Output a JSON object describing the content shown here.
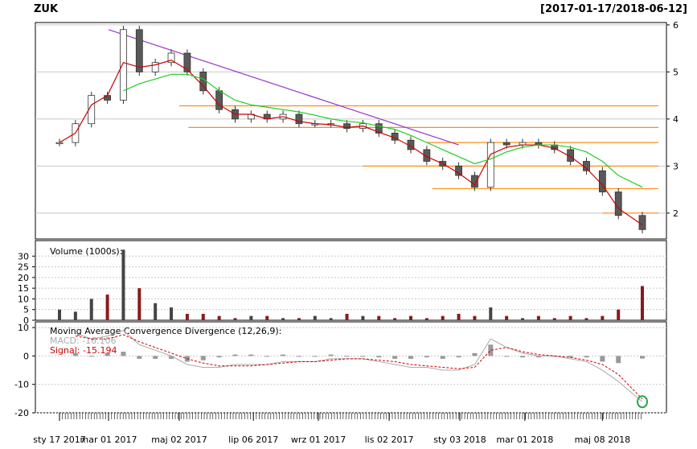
{
  "header": {
    "ticker": "ZUK",
    "date_range": "[2017-01-17/2018-06-12]"
  },
  "colors": {
    "up_candle": "#ffffff",
    "down_candle": "#595959",
    "candle_border": "#333333",
    "ma_short": "#cc0000",
    "ma_long": "#22cc22",
    "trendline": "#9933cc",
    "level_lines": "#ff8c1a",
    "grid": "#c8c8c8",
    "volume_up": "#444444",
    "volume_down": "#8b1a1a",
    "macd_line": "#aaaaaa",
    "signal_line": "#cc0000",
    "macd_hist": "#999999",
    "highlight_circle": "#22aa44"
  },
  "chart_data": [
    {
      "type": "candlestick",
      "panel": "price",
      "title": "",
      "ylim": [
        1.45,
        6.05
      ],
      "y_ticks": [
        2,
        3,
        4,
        5,
        6
      ],
      "y_axis_side": "right",
      "grid": true,
      "x_dates": [
        "2017-01-17",
        "2017-01-31",
        "2017-02-14",
        "2017-02-28",
        "2017-03-14",
        "2017-03-28",
        "2017-04-11",
        "2017-04-25",
        "2017-05-09",
        "2017-05-23",
        "2017-06-06",
        "2017-06-20",
        "2017-07-04",
        "2017-07-18",
        "2017-08-01",
        "2017-08-15",
        "2017-08-29",
        "2017-09-12",
        "2017-09-26",
        "2017-10-10",
        "2017-10-24",
        "2017-11-07",
        "2017-11-21",
        "2017-12-05",
        "2017-12-19",
        "2018-01-02",
        "2018-01-16",
        "2018-01-30",
        "2018-02-13",
        "2018-02-27",
        "2018-03-13",
        "2018-03-27",
        "2018-04-10",
        "2018-04-24",
        "2018-05-08",
        "2018-05-22",
        "2018-06-12"
      ],
      "close": [
        3.5,
        3.9,
        4.5,
        4.4,
        5.9,
        5.0,
        5.2,
        5.4,
        5.0,
        4.6,
        4.2,
        4.0,
        4.1,
        4.0,
        4.1,
        3.9,
        3.9,
        3.9,
        3.8,
        3.9,
        3.7,
        3.55,
        3.35,
        3.1,
        3.0,
        2.8,
        2.55,
        3.5,
        3.45,
        3.5,
        3.45,
        3.35,
        3.1,
        2.9,
        2.45,
        1.95,
        1.65
      ],
      "series": [
        {
          "name": "",
          "role": "short moving average",
          "values": [
            3.5,
            3.7,
            4.3,
            4.5,
            5.2,
            5.1,
            5.15,
            5.25,
            5.05,
            4.7,
            4.3,
            4.1,
            4.1,
            4.0,
            4.05,
            3.95,
            3.9,
            3.88,
            3.82,
            3.85,
            3.72,
            3.6,
            3.42,
            3.2,
            3.05,
            2.85,
            2.6,
            3.25,
            3.4,
            3.45,
            3.45,
            3.38,
            3.2,
            2.95,
            2.6,
            2.1,
            1.75
          ]
        },
        {
          "name": "",
          "role": "long moving average",
          "values": [
            null,
            null,
            null,
            null,
            4.6,
            4.75,
            4.85,
            4.95,
            4.95,
            4.85,
            4.6,
            4.4,
            4.3,
            4.25,
            4.2,
            4.15,
            4.08,
            4.0,
            3.95,
            3.92,
            3.85,
            3.78,
            3.65,
            3.5,
            3.35,
            3.2,
            3.05,
            3.15,
            3.3,
            3.4,
            3.45,
            3.45,
            3.4,
            3.3,
            3.1,
            2.8,
            2.55
          ]
        }
      ],
      "trendline": {
        "from": {
          "x": "2017-03-01",
          "y": 5.9
        },
        "to": {
          "x": "2018-01-02",
          "y": 3.45
        }
      },
      "levels": [
        {
          "y": 4.28,
          "from": "2017-05-02",
          "to": "2018-06-12"
        },
        {
          "y": 3.82,
          "from": "2017-05-10",
          "to": "2018-06-12"
        },
        {
          "y": 3.5,
          "from": "2017-12-05",
          "to": "2018-06-12"
        },
        {
          "y": 3.0,
          "from": "2017-10-10",
          "to": "2018-06-12"
        },
        {
          "y": 2.52,
          "from": "2017-12-10",
          "to": "2018-06-12"
        },
        {
          "y": 2.0,
          "from": "2018-05-08",
          "to": "2018-06-12"
        }
      ]
    },
    {
      "type": "bar",
      "panel": "volume",
      "title": "Volume (1000s):",
      "ylim": [
        0,
        35
      ],
      "y_ticks": [
        0,
        5,
        10,
        15,
        20,
        25,
        30
      ],
      "y_axis_side": "left",
      "values": [
        5,
        4,
        10,
        12,
        33,
        15,
        8,
        6,
        3,
        3,
        2,
        1,
        2,
        2,
        1,
        1,
        2,
        1,
        3,
        2,
        2,
        1,
        2,
        1,
        2,
        3,
        2,
        6,
        2,
        1,
        2,
        1,
        2,
        1,
        2,
        5,
        16
      ]
    },
    {
      "type": "line",
      "panel": "macd",
      "title": "Moving Average Convergence Divergence (12,26,9):",
      "legend": [
        "MACD: -16.106",
        "Signal: -15.194"
      ],
      "ylim": [
        -20,
        12
      ],
      "y_ticks": [
        -20,
        -10,
        0,
        10
      ],
      "y_axis_side": "left",
      "macd": [
        null,
        8,
        6,
        7,
        9,
        4,
        2,
        0,
        -3,
        -4,
        -4,
        -3,
        -3,
        -3,
        -2,
        -2,
        -2,
        -1,
        -1,
        -1,
        -2,
        -3,
        -4,
        -4,
        -5,
        -5,
        -3,
        6,
        3,
        1,
        0,
        0,
        -1,
        -2,
        -5,
        -9,
        -16.106
      ],
      "signal": [
        null,
        7,
        6,
        6,
        7.5,
        5,
        3,
        1,
        -1,
        -2.5,
        -3.5,
        -3.5,
        -3.5,
        -3,
        -2.5,
        -2,
        -2,
        -1.5,
        -1,
        -1,
        -1.5,
        -2,
        -3,
        -3.5,
        -4,
        -4.5,
        -4,
        2,
        3,
        1.5,
        0.5,
        0,
        -0.5,
        -1.5,
        -3,
        -6.5,
        -15.194
      ]
    }
  ],
  "x_axis": {
    "labels": [
      "sty 17 2017",
      "mar 01 2017",
      "maj 02 2017",
      "lip 06 2017",
      "wrz 01 2017",
      "lis 02 2017",
      "sty 03 2018",
      "mar 01 2018",
      "maj 08 2018"
    ],
    "label_dates": [
      "2017-01-17",
      "2017-03-01",
      "2017-05-02",
      "2017-07-06",
      "2017-09-01",
      "2017-11-02",
      "2018-01-03",
      "2018-03-01",
      "2018-05-08"
    ]
  }
}
